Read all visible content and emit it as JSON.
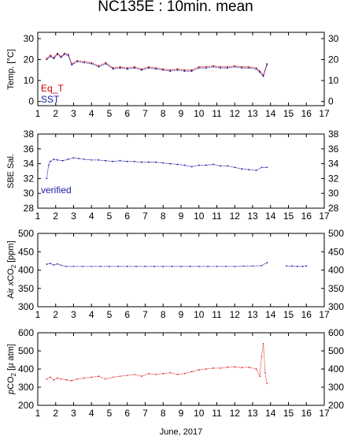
{
  "title": "NC135E : 10min. mean",
  "x_axis_title": "June, 2017",
  "colors": {
    "eq_t": "#cc0000",
    "sst": "#1a1aa6",
    "salinity": "#1a1aa6",
    "air_co2": "#1a1aa6",
    "pco2": "#e03030"
  },
  "chart_data": [
    {
      "type": "line",
      "ylabel_main": "Temp. [",
      "ylabel_unit": "°C",
      "ylabel_close": "]",
      "ylim": [
        -2,
        33
      ],
      "xlim": [
        1,
        17
      ],
      "x_ticks": [
        "1",
        "2",
        "3",
        "4",
        "5",
        "6",
        "7",
        "8",
        "9",
        "10",
        "11",
        "12",
        "13",
        "14",
        "15",
        "16",
        "17"
      ],
      "y_ticks": [
        "0",
        "10",
        "20",
        "30"
      ],
      "legend": [
        "Eq_T",
        "SST"
      ],
      "series": [
        {
          "name": "Eq_T",
          "x": [
            1.5,
            1.7,
            1.9,
            2.1,
            2.3,
            2.5,
            2.7,
            2.9,
            3.2,
            3.6,
            4.0,
            4.4,
            4.8,
            5.2,
            5.6,
            6.0,
            6.4,
            6.8,
            7.2,
            7.6,
            8.0,
            8.4,
            8.8,
            9.2,
            9.6,
            10.0,
            10.4,
            10.8,
            11.2,
            11.6,
            12.0,
            12.4,
            12.8,
            13.2,
            13.4,
            13.6,
            13.8
          ],
          "values": [
            20.5,
            22.0,
            21.0,
            23.0,
            21.5,
            23.0,
            22.5,
            18.0,
            19.5,
            19.0,
            18.5,
            17.0,
            18.5,
            16.0,
            16.5,
            16.0,
            16.5,
            15.5,
            16.5,
            16.0,
            15.5,
            15.0,
            15.5,
            15.0,
            15.0,
            16.5,
            16.5,
            17.0,
            16.5,
            16.5,
            17.0,
            16.5,
            16.5,
            16.0,
            14.5,
            12.5,
            18.0
          ]
        },
        {
          "name": "SST",
          "x": [
            1.5,
            1.7,
            1.9,
            2.1,
            2.3,
            2.5,
            2.7,
            2.9,
            3.2,
            3.6,
            4.0,
            4.4,
            4.8,
            5.2,
            5.6,
            6.0,
            6.4,
            6.8,
            7.2,
            7.6,
            8.0,
            8.4,
            8.8,
            9.2,
            9.6,
            10.0,
            10.4,
            10.8,
            11.2,
            11.6,
            12.0,
            12.4,
            12.8,
            13.2,
            13.4,
            13.6,
            13.8
          ],
          "values": [
            20.0,
            21.5,
            20.5,
            22.5,
            21.0,
            22.5,
            22.0,
            17.5,
            19.0,
            18.5,
            18.0,
            16.5,
            18.0,
            15.5,
            16.0,
            15.5,
            16.0,
            15.0,
            16.0,
            15.5,
            15.0,
            14.5,
            15.0,
            14.5,
            14.5,
            16.0,
            16.0,
            16.5,
            16.0,
            16.0,
            16.5,
            16.0,
            16.0,
            15.5,
            14.0,
            12.0,
            17.5
          ]
        }
      ]
    },
    {
      "type": "line",
      "ylabel": "SBE Sal.",
      "ylim": [
        28,
        38
      ],
      "xlim": [
        1,
        17
      ],
      "x_ticks": [
        "1",
        "2",
        "3",
        "4",
        "5",
        "6",
        "7",
        "8",
        "9",
        "10",
        "11",
        "12",
        "13",
        "14",
        "15",
        "16",
        "17"
      ],
      "y_ticks": [
        "28",
        "30",
        "32",
        "34",
        "36",
        "38"
      ],
      "legend": [
        "verified"
      ],
      "series": [
        {
          "name": "verified",
          "x": [
            1.5,
            1.6,
            1.7,
            1.9,
            2.1,
            2.4,
            2.7,
            3.0,
            3.3,
            3.6,
            4.0,
            4.4,
            4.8,
            5.2,
            5.6,
            6.0,
            6.4,
            6.8,
            7.2,
            7.6,
            8.0,
            8.4,
            8.8,
            9.2,
            9.6,
            10.0,
            10.4,
            10.8,
            11.2,
            11.6,
            12.0,
            12.4,
            12.8,
            13.2,
            13.5,
            13.8
          ],
          "values": [
            32.0,
            33.8,
            34.3,
            34.6,
            34.5,
            34.4,
            34.6,
            34.8,
            34.7,
            34.6,
            34.5,
            34.5,
            34.4,
            34.3,
            34.4,
            34.3,
            34.3,
            34.2,
            34.2,
            34.2,
            34.1,
            34.0,
            33.9,
            33.8,
            33.6,
            33.8,
            33.8,
            33.9,
            33.7,
            33.7,
            33.5,
            33.3,
            33.2,
            33.1,
            33.5,
            33.5
          ]
        }
      ]
    },
    {
      "type": "line",
      "ylabel_main": "Air ",
      "ylabel_italic": "x",
      "ylabel_co": "CO",
      "ylabel_sub": "2",
      "ylabel_unit": " [ppm]",
      "ylim": [
        300,
        500
      ],
      "xlim": [
        1,
        17
      ],
      "x_ticks": [
        "1",
        "2",
        "3",
        "4",
        "5",
        "6",
        "7",
        "8",
        "9",
        "10",
        "11",
        "12",
        "13",
        "14",
        "15",
        "16",
        "17"
      ],
      "y_ticks": [
        "300",
        "350",
        "400",
        "450",
        "500"
      ],
      "series": [
        {
          "x": [
            1.5,
            1.7,
            1.9,
            2.1,
            2.3,
            2.6,
            3.0,
            3.5,
            4.0,
            4.5,
            5.0,
            5.5,
            6.0,
            6.5,
            7.0,
            7.5,
            8.0,
            8.5,
            9.0,
            9.5,
            10.0,
            10.5,
            11.0,
            11.5,
            12.0,
            12.5,
            13.0,
            13.5,
            13.8
          ],
          "values": [
            416,
            418,
            414,
            417,
            413,
            410,
            410,
            410,
            410,
            410,
            410,
            410,
            410,
            410,
            410,
            410,
            410,
            410,
            410,
            410,
            410,
            410,
            410,
            410,
            410,
            411,
            411,
            412,
            420
          ]
        },
        {
          "x": [
            14.9,
            15.2,
            15.5,
            15.8,
            16.0
          ],
          "values": [
            411,
            411,
            410,
            410,
            411
          ]
        }
      ]
    },
    {
      "type": "line",
      "ylabel_italic": "p",
      "ylabel_co": "CO",
      "ylabel_sub": "2",
      "ylabel_unit": " [μ atm]",
      "ylim": [
        200,
        600
      ],
      "xlim": [
        1,
        17
      ],
      "x_ticks": [
        "1",
        "2",
        "3",
        "4",
        "5",
        "6",
        "7",
        "8",
        "9",
        "10",
        "11",
        "12",
        "13",
        "14",
        "15",
        "16",
        "17"
      ],
      "y_ticks": [
        "200",
        "300",
        "400",
        "500",
        "600"
      ],
      "series": [
        {
          "x": [
            1.5,
            1.7,
            1.9,
            2.1,
            2.3,
            2.6,
            2.9,
            3.2,
            3.6,
            4.0,
            4.4,
            4.8,
            5.2,
            5.6,
            6.0,
            6.4,
            6.8,
            7.2,
            7.6,
            8.0,
            8.4,
            8.8,
            9.2,
            9.6,
            10.0,
            10.4,
            10.8,
            11.2,
            11.6,
            12.0,
            12.4,
            12.8,
            13.2,
            13.4,
            13.5,
            13.6,
            13.7,
            13.8
          ],
          "values": [
            345,
            355,
            340,
            350,
            345,
            340,
            335,
            345,
            350,
            355,
            360,
            345,
            355,
            360,
            365,
            370,
            360,
            375,
            370,
            375,
            380,
            370,
            375,
            385,
            395,
            400,
            405,
            405,
            410,
            412,
            408,
            410,
            400,
            360,
            470,
            540,
            380,
            320
          ]
        }
      ]
    }
  ]
}
